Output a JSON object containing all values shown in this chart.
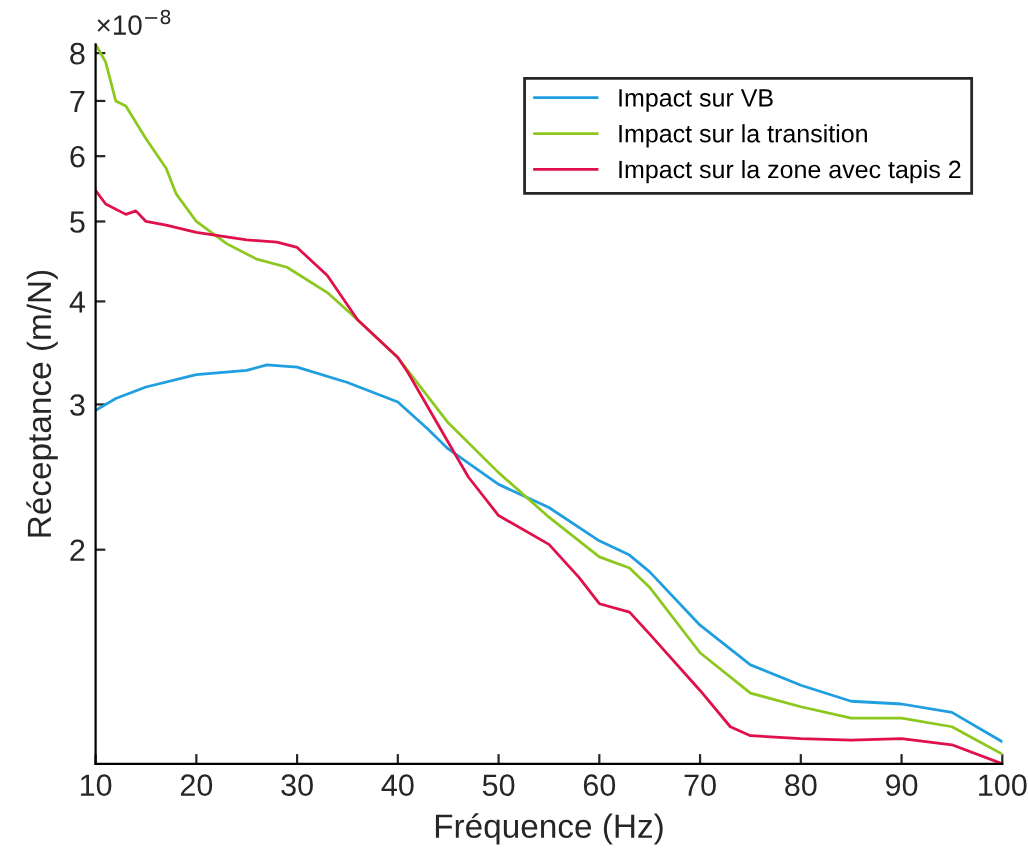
{
  "chart_data": {
    "type": "line",
    "xlabel": "Fréquence (Hz)",
    "ylabel": "Réceptance (m/N)",
    "log": "y",
    "legend": "top right",
    "grid": false,
    "xlim": [
      10,
      100
    ],
    "xticks": [
      10,
      20,
      30,
      40,
      50,
      60,
      70,
      80,
      90,
      100
    ],
    "ylim": [
      1.1,
      8.2
    ],
    "yticks": [
      2,
      3,
      4,
      5,
      6,
      7,
      8
    ],
    "annotations": [
      "×10$^{−8}$"
    ],
    "series": [
      {
        "name": "Impact sur VB",
        "color": "#1f9ee0",
        "x": [
          10,
          12,
          15,
          20,
          25,
          27,
          30,
          35,
          40,
          43,
          45,
          50,
          55,
          60,
          63,
          65,
          70,
          75,
          80,
          85,
          90,
          95,
          100
        ],
        "values": [
          2.95,
          3.05,
          3.15,
          3.26,
          3.3,
          3.35,
          3.33,
          3.19,
          3.02,
          2.8,
          2.65,
          2.4,
          2.25,
          2.05,
          1.97,
          1.88,
          1.62,
          1.45,
          1.37,
          1.31,
          1.3,
          1.27,
          1.17
        ]
      },
      {
        "name": "Impact sur la transition",
        "color": "#8cc81e",
        "x": [
          10,
          11,
          12,
          13,
          15,
          17,
          18,
          20,
          23,
          26,
          29,
          33,
          36,
          40,
          45,
          50,
          55,
          60,
          63,
          65,
          70,
          75,
          80,
          85,
          90,
          95,
          100
        ],
        "values": [
          8.2,
          7.8,
          7.0,
          6.9,
          6.3,
          5.8,
          5.4,
          5.0,
          4.7,
          4.5,
          4.4,
          4.1,
          3.8,
          3.42,
          2.85,
          2.48,
          2.19,
          1.96,
          1.9,
          1.8,
          1.5,
          1.34,
          1.29,
          1.25,
          1.25,
          1.22,
          1.13
        ]
      },
      {
        "name": "Impact sur la zone avec tapis 2",
        "color": "#e0104a",
        "x": [
          10,
          11,
          13,
          14,
          15,
          17,
          20,
          25,
          28,
          30,
          33,
          36,
          40,
          41,
          45,
          47,
          50,
          55,
          58,
          60,
          63,
          65,
          70,
          73,
          75,
          80,
          85,
          90,
          95,
          100
        ],
        "values": [
          5.45,
          5.25,
          5.1,
          5.15,
          5.0,
          4.95,
          4.85,
          4.75,
          4.72,
          4.65,
          4.3,
          3.8,
          3.42,
          3.28,
          2.7,
          2.45,
          2.2,
          2.03,
          1.85,
          1.72,
          1.68,
          1.58,
          1.35,
          1.22,
          1.19,
          1.18,
          1.175,
          1.18,
          1.16,
          1.1
        ]
      }
    ]
  }
}
